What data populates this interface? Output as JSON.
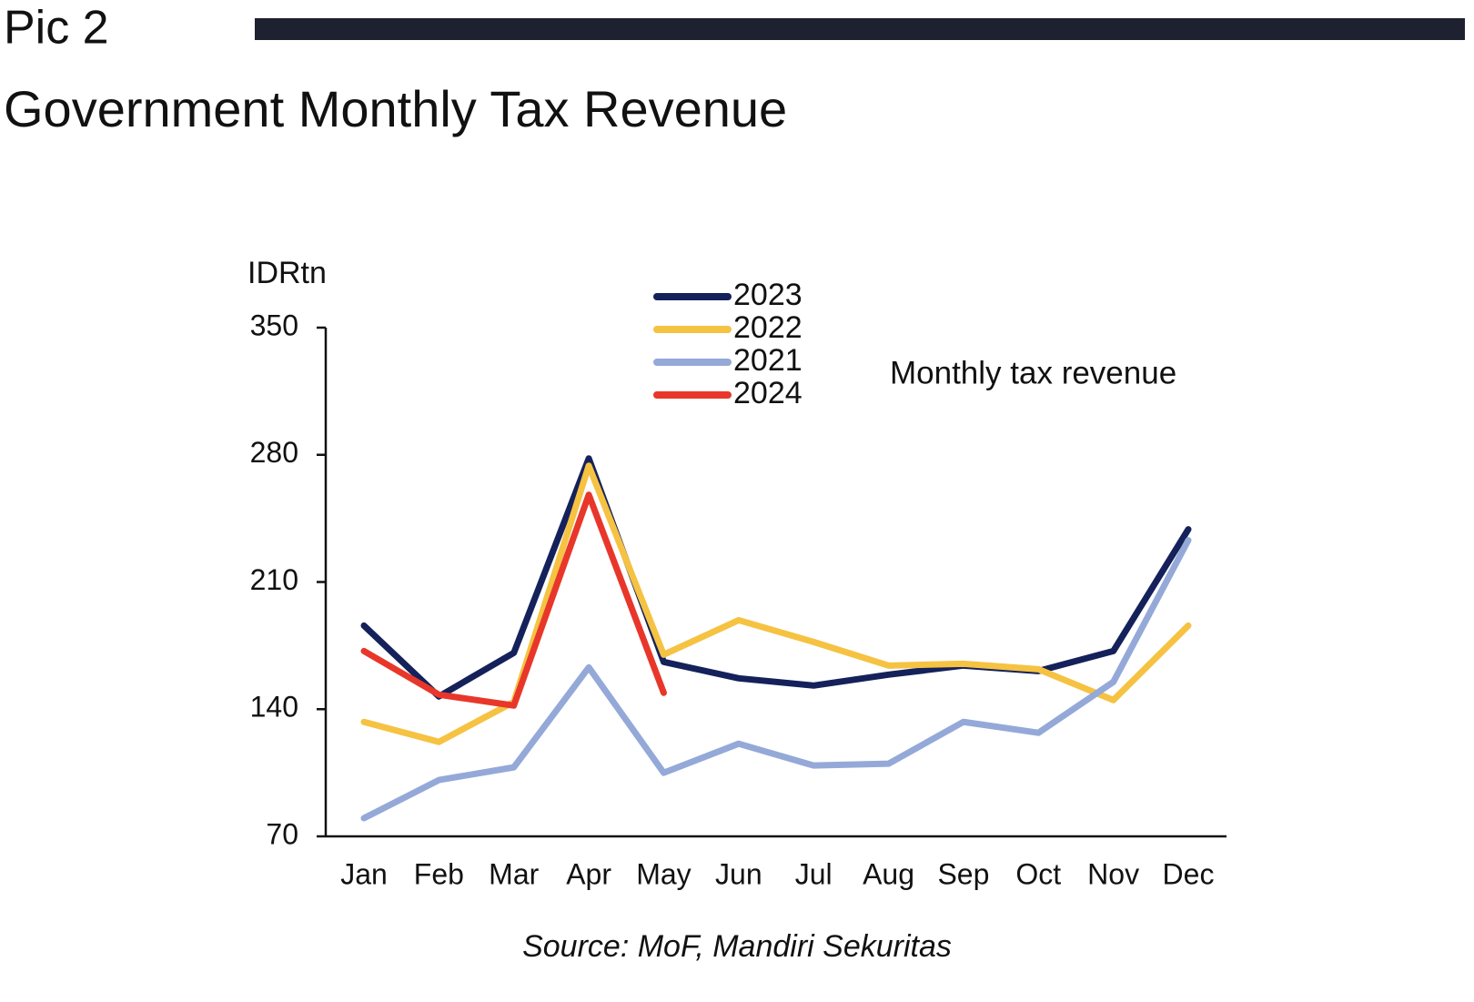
{
  "header": {
    "label": "Pic 2",
    "title": "Government Monthly Tax Revenue"
  },
  "chart_data": {
    "type": "line",
    "y_axis_label": "IDRtn",
    "annotation": "Monthly tax revenue",
    "categories": [
      "Jan",
      "Feb",
      "Mar",
      "Apr",
      "May",
      "Jun",
      "Jul",
      "Aug",
      "Sep",
      "Oct",
      "Nov",
      "Dec"
    ],
    "series": [
      {
        "name": "2023",
        "color": "#14215a",
        "values": [
          186,
          147,
          171,
          278,
          166,
          157,
          153,
          159,
          164,
          161,
          172,
          239
        ]
      },
      {
        "name": "2022",
        "color": "#f5c242",
        "values": [
          133,
          122,
          144,
          274,
          170,
          189,
          177,
          164,
          165,
          162,
          145,
          186
        ]
      },
      {
        "name": "2021",
        "color": "#94a9d8",
        "values": [
          80,
          101,
          108,
          163,
          105,
          121,
          109,
          110,
          133,
          127,
          155,
          233
        ]
      },
      {
        "name": "2024",
        "color": "#e8372a",
        "values": [
          172,
          148,
          142,
          258,
          149,
          null,
          null,
          null,
          null,
          null,
          null,
          null
        ]
      }
    ],
    "ylim": [
      70,
      350
    ],
    "yticks": [
      70,
      140,
      210,
      280,
      350
    ],
    "grid": false
  },
  "footer": {
    "source": "Source: MoF, Mandiri Sekuritas"
  }
}
